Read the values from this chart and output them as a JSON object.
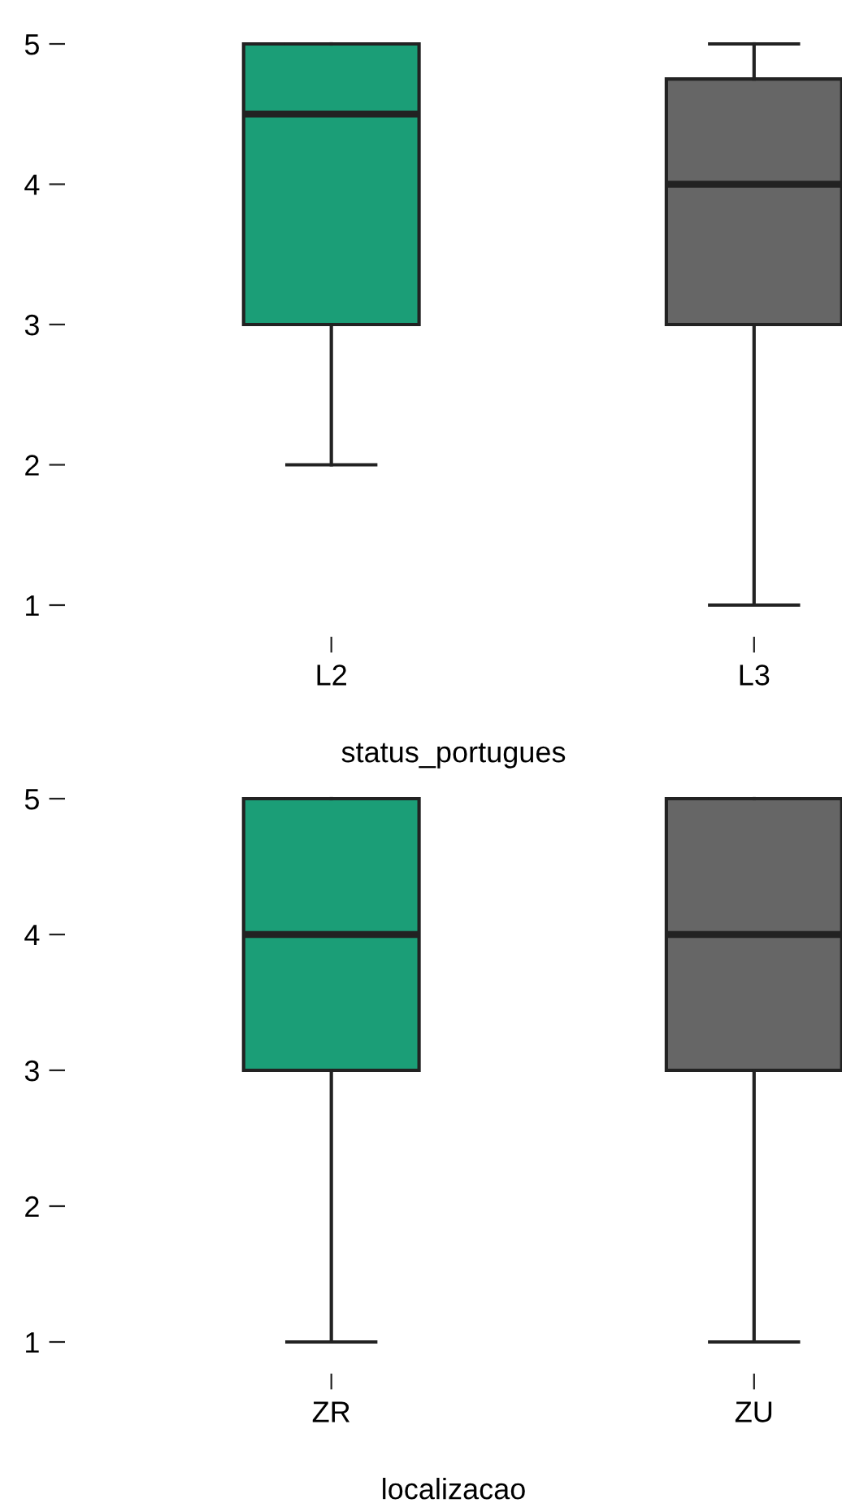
{
  "chart_data": [
    {
      "type": "box",
      "xlabel": "status_portugues",
      "categories": [
        "L2",
        "L3"
      ],
      "colors": [
        "#1b9e77",
        "#666666"
      ],
      "boxes": [
        {
          "low": 2,
          "q1": 3,
          "median": 4.5,
          "q3": 5,
          "high": 5
        },
        {
          "low": 1,
          "q1": 3,
          "median": 4,
          "q3": 4.75,
          "high": 5
        }
      ],
      "ylim": [
        1,
        5
      ],
      "yticks": [
        1,
        2,
        3,
        4,
        5
      ],
      "grid": false
    },
    {
      "type": "box",
      "xlabel": "localizacao",
      "categories": [
        "ZR",
        "ZU"
      ],
      "colors": [
        "#1b9e77",
        "#666666"
      ],
      "boxes": [
        {
          "low": 1,
          "q1": 3,
          "median": 4,
          "q3": 5,
          "high": 5
        },
        {
          "low": 1,
          "q1": 3,
          "median": 4,
          "q3": 5,
          "high": 5
        }
      ],
      "ylim": [
        1,
        5
      ],
      "yticks": [
        1,
        2,
        3,
        4,
        5
      ],
      "grid": false
    }
  ]
}
